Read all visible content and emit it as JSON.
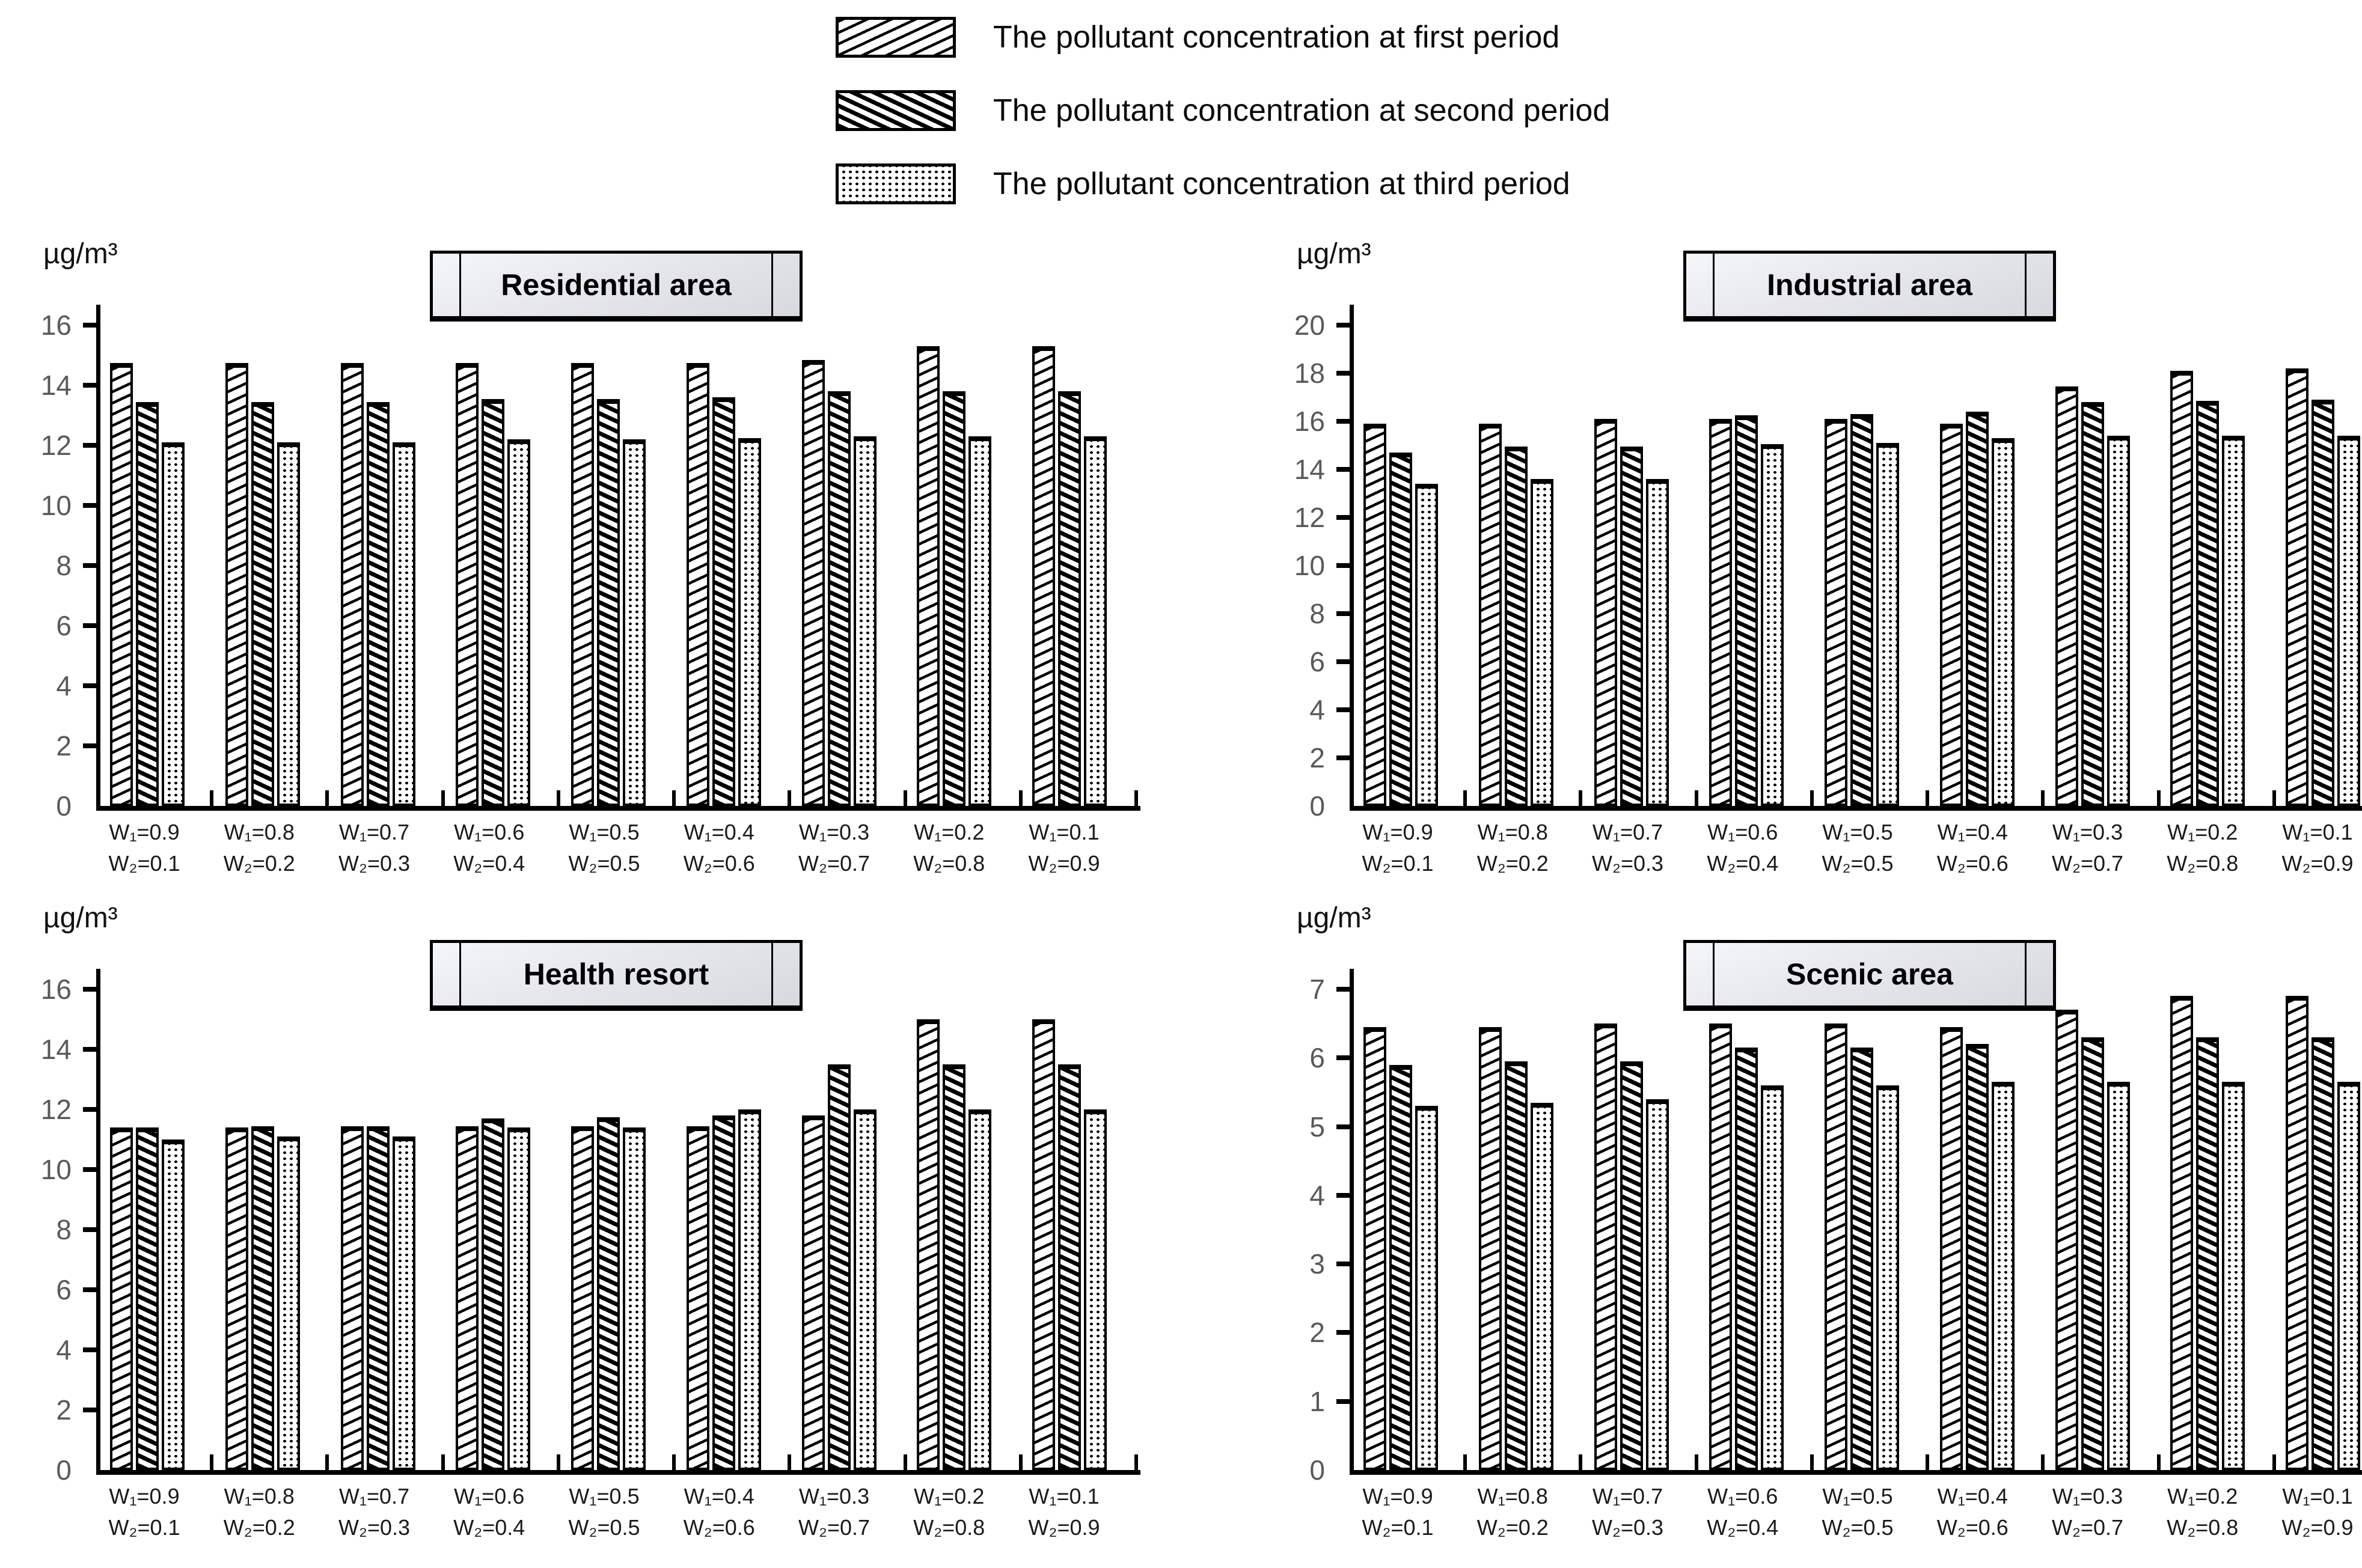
{
  "page": {
    "background": "#ffffff"
  },
  "colors": {
    "ink": "#000000",
    "bar_fill": "#ffffff",
    "tick_label": "#595959",
    "xlabel": "#1a1a1a",
    "plaque_fill_light": "#f4f6f8",
    "plaque_fill_dark": "#d6d9dd"
  },
  "legend": {
    "items": [
      {
        "label": "The pollutant concentration at first period",
        "swatch": "diagonal-up-thin-hatch"
      },
      {
        "label": "The pollutant concentration at second period",
        "swatch": "diagonal-down-thick-hatch"
      },
      {
        "label": "The pollutant concentration at third period",
        "swatch": "dotted"
      }
    ]
  },
  "chart_data": [
    {
      "type": "bar",
      "title": "Residential area",
      "ylabel": "µg/m³",
      "ylim": [
        0,
        16
      ],
      "ytick_step": 2,
      "grid": false,
      "legend_position": "top-center-shared",
      "categories": [
        [
          "W₁=0.9",
          "W₂=0.1"
        ],
        [
          "W₁=0.8",
          "W₂=0.2"
        ],
        [
          "W₁=0.7",
          "W₂=0.3"
        ],
        [
          "W₁=0.6",
          "W₂=0.4"
        ],
        [
          "W₁=0.5",
          "W₂=0.5"
        ],
        [
          "W₁=0.4",
          "W₂=0.6"
        ],
        [
          "W₁=0.3",
          "W₂=0.7"
        ],
        [
          "W₁=0.2",
          "W₂=0.8"
        ],
        [
          "W₁=0.1",
          "W₂=0.9"
        ]
      ],
      "series": [
        {
          "name": "The pollutant concentration at first period",
          "values": [
            14.75,
            14.75,
            14.75,
            14.75,
            14.75,
            14.75,
            14.85,
            15.3,
            15.3
          ]
        },
        {
          "name": "The pollutant concentration at second period",
          "values": [
            13.45,
            13.45,
            13.45,
            13.55,
            13.55,
            13.6,
            13.8,
            13.8,
            13.8
          ]
        },
        {
          "name": "The pollutant concentration at third period",
          "values": [
            12.1,
            12.1,
            12.1,
            12.2,
            12.2,
            12.25,
            12.3,
            12.3,
            12.3
          ]
        }
      ]
    },
    {
      "type": "bar",
      "title": "Industrial area",
      "ylabel": "µg/m³",
      "ylim": [
        0,
        20
      ],
      "ytick_step": 2,
      "grid": false,
      "legend_position": "top-center-shared",
      "categories": [
        [
          "W₁=0.9",
          "W₂=0.1"
        ],
        [
          "W₁=0.8",
          "W₂=0.2"
        ],
        [
          "W₁=0.7",
          "W₂=0.3"
        ],
        [
          "W₁=0.6",
          "W₂=0.4"
        ],
        [
          "W₁=0.5",
          "W₂=0.5"
        ],
        [
          "W₁=0.4",
          "W₂=0.6"
        ],
        [
          "W₁=0.3",
          "W₂=0.7"
        ],
        [
          "W₁=0.2",
          "W₂=0.8"
        ],
        [
          "W₁=0.1",
          "W₂=0.9"
        ]
      ],
      "series": [
        {
          "name": "The pollutant concentration at first period",
          "values": [
            15.9,
            15.9,
            16.1,
            16.1,
            16.1,
            15.9,
            17.45,
            18.1,
            18.2
          ]
        },
        {
          "name": "The pollutant concentration at second period",
          "values": [
            14.7,
            14.95,
            14.95,
            16.25,
            16.3,
            16.4,
            16.8,
            16.85,
            16.9
          ]
        },
        {
          "name": "The pollutant concentration at third period",
          "values": [
            13.4,
            13.6,
            13.6,
            15.05,
            15.1,
            15.3,
            15.4,
            15.4,
            15.4
          ]
        }
      ]
    },
    {
      "type": "bar",
      "title": "Health resort",
      "ylabel": "µg/m³",
      "ylim": [
        0,
        16
      ],
      "ytick_step": 2,
      "grid": false,
      "legend_position": "top-center-shared",
      "categories": [
        [
          "W₁=0.9",
          "W₂=0.1"
        ],
        [
          "W₁=0.8",
          "W₂=0.2"
        ],
        [
          "W₁=0.7",
          "W₂=0.3"
        ],
        [
          "W₁=0.6",
          "W₂=0.4"
        ],
        [
          "W₁=0.5",
          "W₂=0.5"
        ],
        [
          "W₁=0.4",
          "W₂=0.6"
        ],
        [
          "W₁=0.3",
          "W₂=0.7"
        ],
        [
          "W₁=0.2",
          "W₂=0.8"
        ],
        [
          "W₁=0.1",
          "W₂=0.9"
        ]
      ],
      "series": [
        {
          "name": "The pollutant concentration at first period",
          "values": [
            11.4,
            11.4,
            11.45,
            11.45,
            11.45,
            11.45,
            11.8,
            15.0,
            15.0
          ]
        },
        {
          "name": "The pollutant concentration at second period",
          "values": [
            11.4,
            11.45,
            11.45,
            11.7,
            11.75,
            11.8,
            13.5,
            13.5,
            13.5
          ]
        },
        {
          "name": "The pollutant concentration at third period",
          "values": [
            11.0,
            11.1,
            11.1,
            11.4,
            11.4,
            12.0,
            12.0,
            12.0,
            12.0
          ]
        }
      ]
    },
    {
      "type": "bar",
      "title": "Scenic area",
      "ylabel": "µg/m³",
      "ylim": [
        0,
        7
      ],
      "ytick_step": 1,
      "grid": false,
      "legend_position": "top-center-shared",
      "categories": [
        [
          "W₁=0.9",
          "W₂=0.1"
        ],
        [
          "W₁=0.8",
          "W₂=0.2"
        ],
        [
          "W₁=0.7",
          "W₂=0.3"
        ],
        [
          "W₁=0.6",
          "W₂=0.4"
        ],
        [
          "W₁=0.5",
          "W₂=0.5"
        ],
        [
          "W₁=0.4",
          "W₂=0.6"
        ],
        [
          "W₁=0.3",
          "W₂=0.7"
        ],
        [
          "W₁=0.2",
          "W₂=0.8"
        ],
        [
          "W₁=0.1",
          "W₂=0.9"
        ]
      ],
      "series": [
        {
          "name": "The pollutant concentration at first period",
          "values": [
            6.45,
            6.45,
            6.5,
            6.5,
            6.5,
            6.45,
            6.7,
            6.9,
            6.9
          ]
        },
        {
          "name": "The pollutant concentration at second period",
          "values": [
            5.9,
            5.95,
            5.95,
            6.15,
            6.15,
            6.2,
            6.3,
            6.3,
            6.3
          ]
        },
        {
          "name": "The pollutant concentration at third period",
          "values": [
            5.3,
            5.35,
            5.4,
            5.6,
            5.6,
            5.65,
            5.65,
            5.65,
            5.65
          ]
        }
      ]
    }
  ]
}
